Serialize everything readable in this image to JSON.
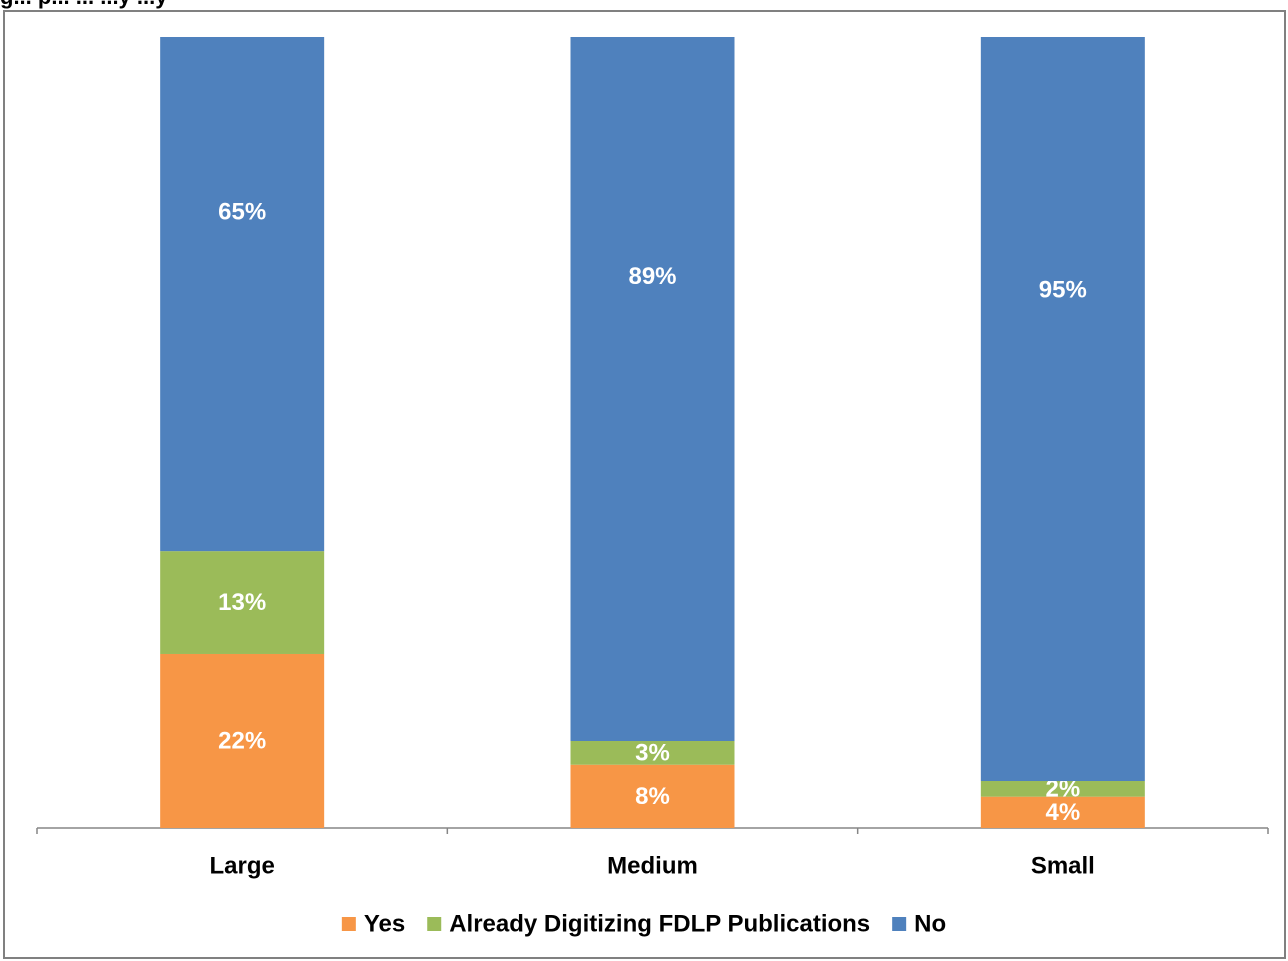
{
  "header": {
    "clipped_title": "g... p... ... ...y ...y"
  },
  "colors": {
    "yes": "#F79646",
    "already": "#9BBB59",
    "no": "#4F81BD"
  },
  "chart_data": {
    "type": "bar",
    "stacked": true,
    "percent_stacked": true,
    "categories": [
      "Large",
      "Medium",
      "Small"
    ],
    "series": [
      {
        "name": "Yes",
        "values": [
          22,
          8,
          4
        ],
        "labels": [
          "22%",
          "8%",
          "4%"
        ]
      },
      {
        "name": "Already Digitizing FDLP Publications",
        "values": [
          13,
          3,
          2
        ],
        "labels": [
          "13%",
          "3%",
          "2%"
        ]
      },
      {
        "name": "No",
        "values": [
          65,
          89,
          95
        ],
        "labels": [
          "65%",
          "89%",
          "95%"
        ]
      }
    ],
    "ylim": [
      0,
      100
    ],
    "grid": false,
    "legend": "bottom"
  }
}
